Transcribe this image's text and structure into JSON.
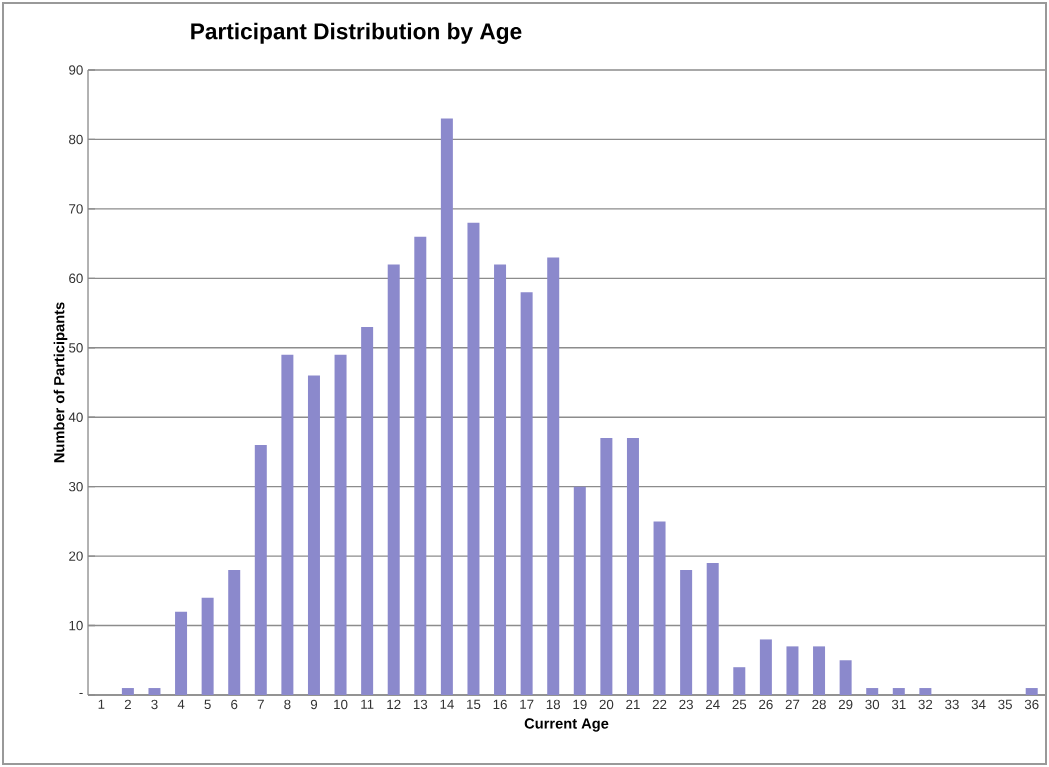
{
  "chart_data": {
    "type": "bar",
    "title": "Participant Distribution by Age",
    "xlabel": "Current Age",
    "ylabel": "Number of Participants",
    "categories": [
      "1",
      "2",
      "3",
      "4",
      "5",
      "6",
      "7",
      "8",
      "9",
      "10",
      "11",
      "12",
      "13",
      "14",
      "15",
      "16",
      "17",
      "18",
      "19",
      "20",
      "21",
      "22",
      "23",
      "24",
      "25",
      "26",
      "27",
      "28",
      "29",
      "30",
      "31",
      "32",
      "33",
      "34",
      "35",
      "36"
    ],
    "values": [
      0,
      1,
      1,
      12,
      14,
      18,
      36,
      49,
      46,
      49,
      53,
      62,
      66,
      83,
      68,
      62,
      58,
      63,
      30,
      37,
      37,
      25,
      18,
      19,
      4,
      8,
      7,
      7,
      5,
      1,
      1,
      1,
      0,
      0,
      0,
      1
    ],
    "color": "#8b89cc",
    "ylim": [
      0,
      90
    ],
    "yticks": [
      {
        "value": 0,
        "label": "-"
      },
      10,
      20,
      30,
      40,
      50,
      60,
      70,
      80,
      90
    ],
    "grid": "y"
  }
}
